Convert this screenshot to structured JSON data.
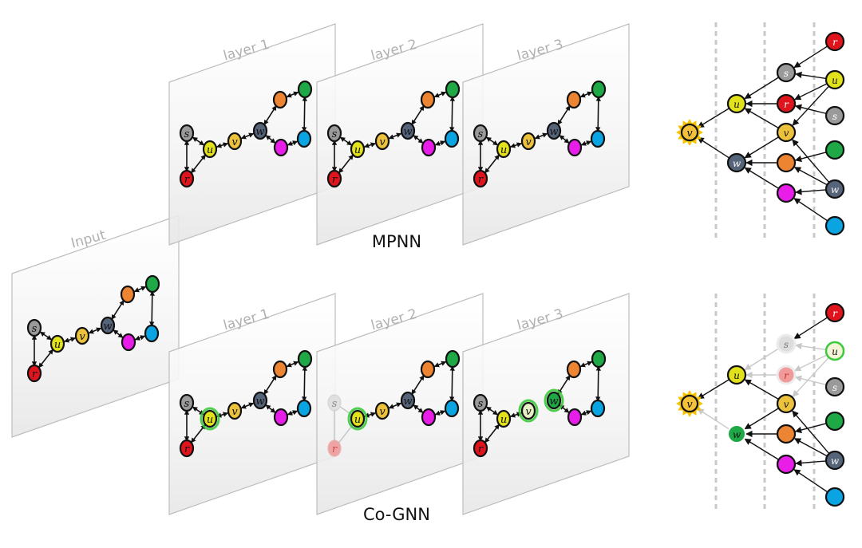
{
  "input_label": "Input",
  "layer_labels": [
    "layer 1",
    "layer 2",
    "layer 3"
  ],
  "captions": {
    "mpnn": "MPNN",
    "cognn": "Co-GNN"
  },
  "node_letters": {
    "s": "s",
    "u": "u",
    "v": "v",
    "w": "w",
    "r": "r"
  },
  "colors": {
    "gray": "#9a9a9a",
    "yellow": "#e2e21c",
    "gold": "#ecc23c",
    "slate": "#56647a",
    "orange": "#ec8432",
    "green": "#1ea846",
    "magenta": "#e81ee8",
    "blue": "#0aa4e2",
    "red": "#e0141c",
    "cognn_green": "#3dc93d"
  },
  "graph_nodes": [
    "s",
    "r",
    "u",
    "v",
    "w",
    "orange",
    "green",
    "magenta",
    "blue"
  ],
  "graph_edges": [
    [
      "s",
      "u"
    ],
    [
      "u",
      "v"
    ],
    [
      "v",
      "w"
    ],
    [
      "w",
      "orange"
    ],
    [
      "orange",
      "green"
    ],
    [
      "green",
      "blue"
    ],
    [
      "blue",
      "magenta"
    ],
    [
      "magenta",
      "w"
    ],
    [
      "s",
      "r"
    ],
    [
      "r",
      "u"
    ]
  ]
}
